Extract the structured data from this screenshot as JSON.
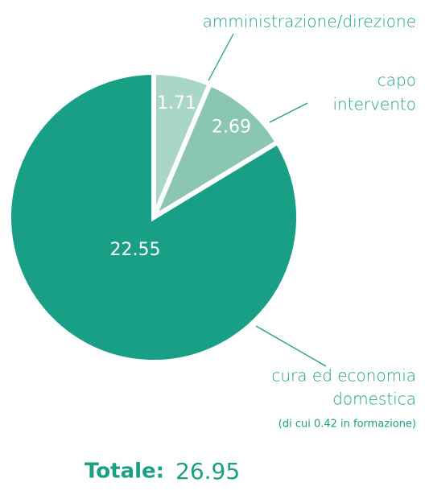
{
  "chart_data": {
    "type": "pie",
    "categories": [
      [
        "amministrazione/direzione"
      ],
      [
        "capo",
        "intervento"
      ],
      [
        "cura ed economia",
        "domestica"
      ]
    ],
    "values": [
      1.71,
      2.69,
      22.55
    ],
    "colors": [
      "#a9d6c8",
      "#8ac6b1",
      "#1a9f87"
    ],
    "annotation": "(di cui 0.42 in formazione)",
    "total_label": "Totale:",
    "total": 26.95
  }
}
